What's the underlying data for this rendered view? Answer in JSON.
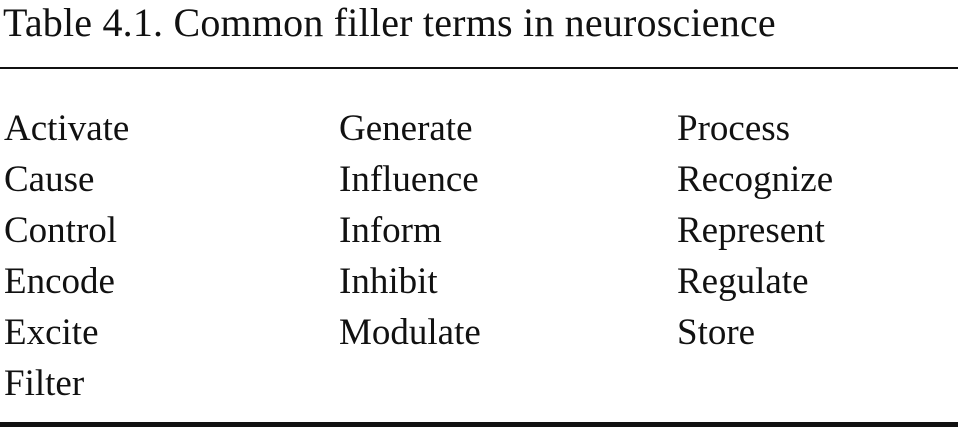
{
  "caption": "Table 4.1.  Common filler terms in neuroscience",
  "columns": [
    [
      "Activate",
      "Cause",
      "Control",
      "Encode",
      "Excite",
      "Filter"
    ],
    [
      "Generate",
      "Influence",
      "Inform",
      "Inhibit",
      "Modulate"
    ],
    [
      "Process",
      "Recognize",
      "Represent",
      "Regulate",
      "Store"
    ]
  ]
}
